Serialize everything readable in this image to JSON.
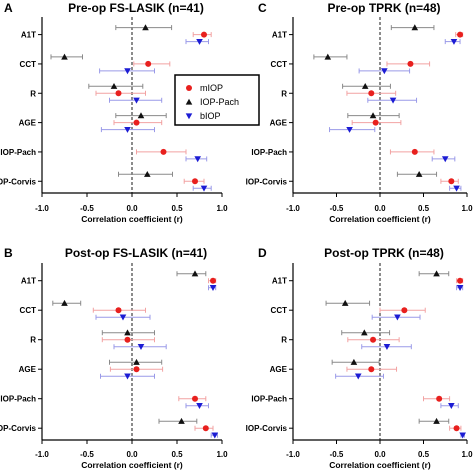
{
  "figure": {
    "legend": [
      {
        "name": "mIOP",
        "marker": "circle",
        "color": "#e8201e"
      },
      {
        "name": "IOP-Pach",
        "marker": "triangle-up",
        "color": "#111111"
      },
      {
        "name": "bIOP",
        "marker": "triangle-down",
        "color": "#1c1cd4"
      }
    ],
    "colors": {
      "mIOP": "#e8201e",
      "mIOP_err": "#f2a2a2",
      "IOPPach": "#111111",
      "IOPPach_err": "#8a8a8a",
      "bIOP": "#1c1cd4",
      "bIOP_err": "#9a9ae8"
    }
  },
  "chart_data": [
    {
      "type": "scatter",
      "panel": "A",
      "title": "Pre-op FS-LASIK (n=41)",
      "xlabel": "Correlation coefficient (r)",
      "xlim": [
        -1.0,
        1.0
      ],
      "xticks": [
        "-1.0",
        "-0.5",
        "0.0",
        "0.5",
        "1.0"
      ],
      "categories": [
        "A1T",
        "CCT",
        "R",
        "AGE",
        "IOP-Pach",
        "IOP-Corvis"
      ],
      "reference_line": 0,
      "series": [
        {
          "name": "mIOP",
          "values": [
            0.8,
            0.18,
            -0.15,
            0.05,
            0.35,
            0.7
          ],
          "ci_low": [
            0.68,
            0.02,
            -0.4,
            -0.2,
            0.05,
            0.58
          ],
          "ci_high": [
            0.88,
            0.42,
            0.15,
            0.33,
            0.6,
            0.8
          ]
        },
        {
          "name": "IOP-Pach",
          "values": [
            0.15,
            -0.75,
            -0.2,
            0.1,
            null,
            0.17
          ],
          "ci_low": [
            -0.18,
            -0.9,
            -0.48,
            -0.18,
            null,
            -0.15
          ],
          "ci_high": [
            0.44,
            -0.55,
            0.12,
            0.38,
            null,
            0.45
          ]
        },
        {
          "name": "bIOP",
          "values": [
            0.75,
            -0.05,
            0.05,
            -0.05,
            0.73,
            0.8
          ],
          "ci_low": [
            0.6,
            -0.36,
            -0.25,
            -0.34,
            0.6,
            0.68
          ],
          "ci_high": [
            0.85,
            0.25,
            0.33,
            0.25,
            0.83,
            0.88
          ]
        }
      ]
    },
    {
      "type": "scatter",
      "panel": "C",
      "title": "Pre-op TPRK (n=48)",
      "xlabel": "Correlation coefficient (r)",
      "xlim": [
        -1.0,
        1.0
      ],
      "xticks": [
        "-1.0",
        "-0.5",
        "0.0",
        "0.5",
        "1.0"
      ],
      "categories": [
        "A1T",
        "CCT",
        "R",
        "AGE",
        "IOP-Pach",
        "IOP-Corvis"
      ],
      "reference_line": 0,
      "series": [
        {
          "name": "mIOP",
          "values": [
            0.92,
            0.35,
            -0.1,
            -0.05,
            0.4,
            0.82
          ],
          "ci_low": [
            0.87,
            0.08,
            -0.38,
            -0.32,
            0.12,
            0.7
          ],
          "ci_high": [
            0.95,
            0.57,
            0.18,
            0.24,
            0.62,
            0.9
          ]
        },
        {
          "name": "IOP-Pach",
          "values": [
            0.4,
            -0.6,
            -0.17,
            -0.08,
            null,
            0.45
          ],
          "ci_low": [
            0.13,
            -0.76,
            -0.43,
            -0.37,
            null,
            0.2
          ],
          "ci_high": [
            0.62,
            -0.38,
            0.12,
            0.22,
            null,
            0.65
          ]
        },
        {
          "name": "bIOP",
          "values": [
            0.85,
            0.05,
            0.15,
            -0.35,
            0.75,
            0.88
          ],
          "ci_low": [
            0.75,
            -0.24,
            -0.14,
            -0.58,
            0.6,
            0.8
          ],
          "ci_high": [
            0.92,
            0.34,
            0.42,
            -0.06,
            0.86,
            0.93
          ]
        }
      ]
    },
    {
      "type": "scatter",
      "panel": "B",
      "title": "Post-op FS-LASIK (n=41)",
      "xlabel": "Correlation coefficient (r)",
      "xlim": [
        -1.0,
        1.0
      ],
      "xticks": [
        "-1.0",
        "-0.5",
        "0.0",
        "0.5",
        "1.0"
      ],
      "categories": [
        "A1T",
        "CCT",
        "R",
        "AGE",
        "IOP-Pach",
        "IOP-Corvis"
      ],
      "reference_line": 0,
      "series": [
        {
          "name": "mIOP",
          "values": [
            0.9,
            -0.15,
            -0.05,
            0.05,
            0.7,
            0.82
          ],
          "ci_low": [
            0.85,
            -0.43,
            -0.33,
            -0.24,
            0.52,
            0.7
          ],
          "ci_high": [
            0.93,
            0.15,
            0.25,
            0.34,
            0.82,
            0.9
          ]
        },
        {
          "name": "IOP-Pach",
          "values": [
            0.7,
            -0.75,
            -0.05,
            0.05,
            null,
            0.55
          ],
          "ci_low": [
            0.5,
            -0.88,
            -0.33,
            -0.25,
            null,
            0.3
          ],
          "ci_high": [
            0.82,
            -0.57,
            0.25,
            0.33,
            null,
            0.72
          ]
        },
        {
          "name": "bIOP",
          "values": [
            0.9,
            -0.1,
            0.1,
            -0.05,
            0.75,
            0.92
          ],
          "ci_low": [
            0.85,
            -0.4,
            -0.2,
            -0.35,
            0.6,
            0.88
          ],
          "ci_high": [
            0.93,
            0.2,
            0.38,
            0.25,
            0.85,
            0.95
          ]
        }
      ]
    },
    {
      "type": "scatter",
      "panel": "D",
      "title": "Post-op TPRK (n=48)",
      "xlabel": "Correlation coefficient (r)",
      "xlim": [
        -1.0,
        1.0
      ],
      "xticks": [
        "-1.0",
        "-0.5",
        "0.0",
        "0.5",
        "1.0"
      ],
      "categories": [
        "A1T",
        "CCT",
        "R",
        "AGE",
        "IOP-Pach",
        "IOP-Corvis"
      ],
      "reference_line": 0,
      "series": [
        {
          "name": "mIOP",
          "values": [
            0.92,
            0.28,
            -0.08,
            -0.1,
            0.68,
            0.88
          ],
          "ci_low": [
            0.88,
            0.0,
            -0.37,
            -0.38,
            0.5,
            0.8
          ],
          "ci_high": [
            0.95,
            0.52,
            0.22,
            0.19,
            0.8,
            0.93
          ]
        },
        {
          "name": "IOP-Pach",
          "values": [
            0.65,
            -0.4,
            -0.18,
            -0.3,
            null,
            0.65
          ],
          "ci_low": [
            0.45,
            -0.62,
            -0.44,
            -0.55,
            null,
            0.45
          ],
          "ci_high": [
            0.79,
            -0.12,
            0.11,
            -0.01,
            null,
            0.79
          ]
        },
        {
          "name": "bIOP",
          "values": [
            0.92,
            0.2,
            0.08,
            -0.25,
            0.82,
            0.95
          ],
          "ci_low": [
            0.88,
            -0.09,
            -0.21,
            -0.51,
            0.7,
            0.93
          ],
          "ci_high": [
            0.95,
            0.46,
            0.36,
            0.04,
            0.9,
            0.97
          ]
        }
      ]
    }
  ]
}
